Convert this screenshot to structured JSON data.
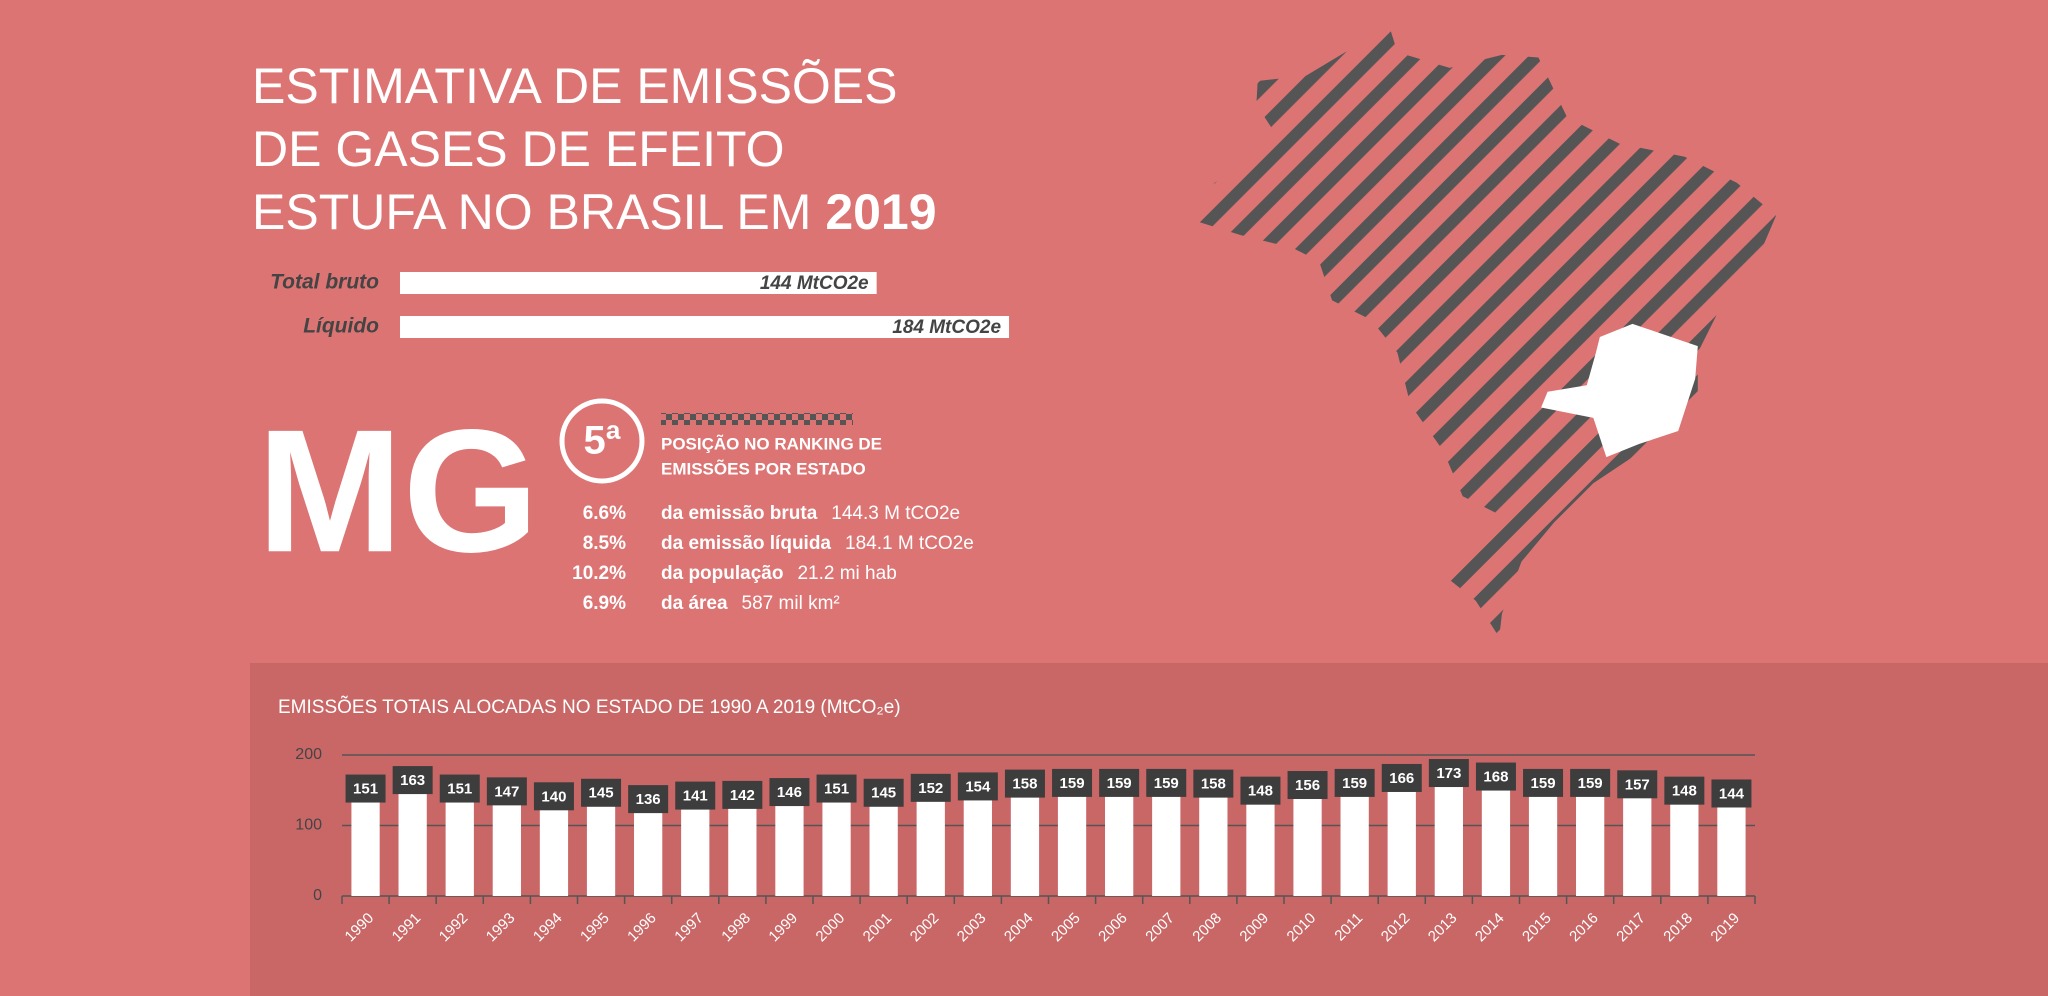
{
  "header": {
    "title_lines": [
      "ESTIMATIVA DE EMISSÕES",
      "DE GASES DE EFEITO",
      "ESTUFA NO BRASIL EM"
    ],
    "year": "2019"
  },
  "state": {
    "abbr": "MG",
    "rank": "5ª",
    "rank_text": [
      "POSIÇÃO NO RANKING DE",
      "EMISSÕES POR ESTADO"
    ],
    "stats": [
      {
        "share": "6.6%",
        "label": "da emissão bruta",
        "value": "144.3 M tCO2e"
      },
      {
        "share": "8.5%",
        "label": "da emissão líquida",
        "value": "184.1 M tCO2e"
      },
      {
        "share": "10.2%",
        "label": "da população",
        "value": "21.2 mi hab"
      },
      {
        "share": "6.9%",
        "label": "da área",
        "value": "587 mil km²"
      }
    ]
  },
  "chart_data": [
    {
      "type": "hbar",
      "categories": [
        "Total bruto",
        "Líquido"
      ],
      "values": [
        144,
        184
      ],
      "value_labels": [
        "144 MtCO2e",
        "184 MtCO2e"
      ],
      "color": "#ffffff"
    },
    {
      "type": "bar",
      "title": "EMISSÕES TOTAIS ALOCADAS NO ESTADO DE 1990 A 2019 (MtCO₂e)",
      "categories": [
        "1990",
        "1991",
        "1992",
        "1993",
        "1994",
        "1995",
        "1996",
        "1997",
        "1998",
        "1999",
        "2000",
        "2001",
        "2002",
        "2003",
        "2004",
        "2005",
        "2006",
        "2007",
        "2008",
        "2009",
        "2010",
        "2011",
        "2012",
        "2013",
        "2014",
        "2015",
        "2016",
        "2017",
        "2018",
        "2019"
      ],
      "values": [
        151,
        163,
        151,
        147,
        140,
        145,
        136,
        141,
        142,
        146,
        151,
        145,
        152,
        154,
        158,
        159,
        159,
        159,
        158,
        148,
        156,
        159,
        166,
        173,
        168,
        159,
        159,
        157,
        148,
        144
      ],
      "color": "#ffffff",
      "ylim": [
        0,
        200
      ],
      "yticks": [
        0,
        100,
        200
      ],
      "grid": true
    }
  ]
}
